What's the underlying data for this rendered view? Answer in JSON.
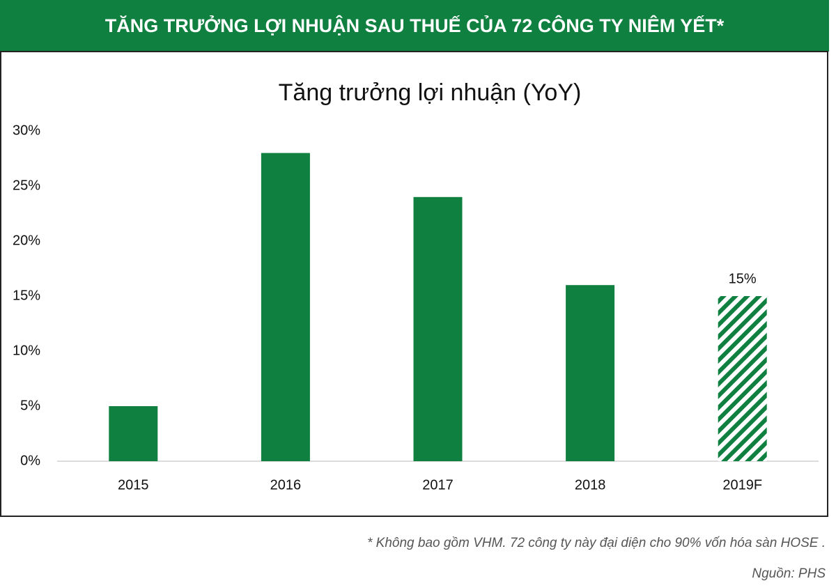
{
  "chart_data": {
    "type": "bar",
    "header": "TĂNG TRƯỞNG LỢI NHUẬN SAU THUẾ CỦA 72 CÔNG TY NIÊM YẾT*",
    "title": "Tăng trưởng lợi nhuận (YoY)",
    "categories": [
      "2015",
      "2016",
      "2017",
      "2018",
      "2019F"
    ],
    "values": [
      5,
      28,
      24,
      16,
      15
    ],
    "value_labels": [
      null,
      null,
      null,
      null,
      "15%"
    ],
    "hatched": [
      false,
      false,
      false,
      false,
      true
    ],
    "color": "#0f8040",
    "ylim": [
      0,
      30
    ],
    "yticks": [
      {
        "value": 0,
        "label": "0%"
      },
      {
        "value": 5,
        "label": "5%"
      },
      {
        "value": 10,
        "label": "10%"
      },
      {
        "value": 15,
        "label": "15%"
      },
      {
        "value": 20,
        "label": "20%"
      },
      {
        "value": 25,
        "label": "25%"
      },
      {
        "value": 30,
        "label": "30%"
      }
    ],
    "grid": false,
    "footnote": "* Không bao gồm VHM. 72 công ty này đại diện cho 90% vốn hóa sàn HOSE .",
    "source": "Nguồn: PHS"
  }
}
